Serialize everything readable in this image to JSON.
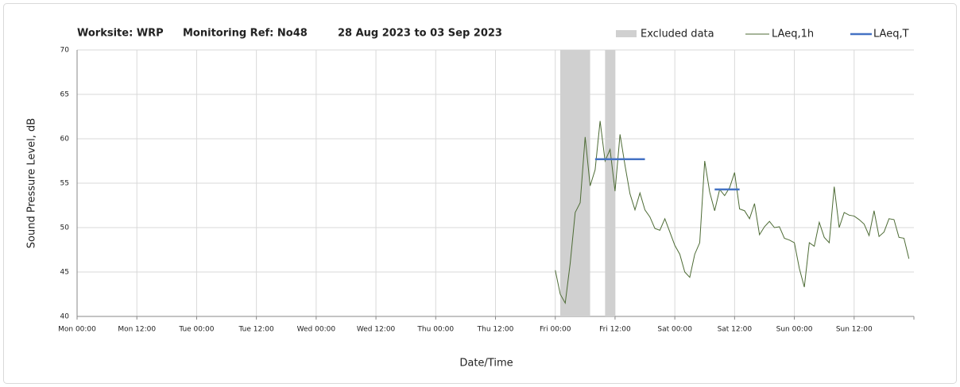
{
  "chart_data": {
    "type": "line",
    "title": [
      "Worksite: WRP",
      "Monitoring Ref: No48",
      "28 Aug 2023 to 03 Sep 2023"
    ],
    "xlabel": "Date/Time",
    "ylabel": "Sound Pressure Level, dB",
    "xlim": [
      0,
      168
    ],
    "xticks": [
      {
        "value": 0,
        "label": "Mon 00:00"
      },
      {
        "value": 12,
        "label": "Mon 12:00"
      },
      {
        "value": 24,
        "label": "Tue 00:00"
      },
      {
        "value": 36,
        "label": "Tue 12:00"
      },
      {
        "value": 48,
        "label": "Wed 00:00"
      },
      {
        "value": 60,
        "label": "Wed 12:00"
      },
      {
        "value": 72,
        "label": "Thu 00:00"
      },
      {
        "value": 84,
        "label": "Thu 12:00"
      },
      {
        "value": 96,
        "label": "Fri 00:00"
      },
      {
        "value": 108,
        "label": "Fri 12:00"
      },
      {
        "value": 120,
        "label": "Sat 00:00"
      },
      {
        "value": 132,
        "label": "Sat 12:00"
      },
      {
        "value": 144,
        "label": "Sun 00:00"
      },
      {
        "value": 156,
        "label": "Sun 12:00"
      }
    ],
    "ylim": [
      40,
      70
    ],
    "yticks": [
      40,
      45,
      50,
      55,
      60,
      65,
      70
    ],
    "grid": true,
    "x": [
      96,
      97,
      98,
      99,
      100,
      101,
      102,
      103,
      104,
      105,
      106,
      107,
      108,
      109,
      110,
      111,
      112,
      113,
      114,
      115,
      116,
      117,
      118,
      119,
      120,
      121,
      122,
      123,
      124,
      125,
      126,
      127,
      128,
      129,
      130,
      131,
      132,
      133,
      134,
      135,
      136,
      137,
      138,
      139,
      140,
      141,
      142,
      143,
      144,
      145,
      146,
      147,
      148,
      149,
      150,
      151,
      152,
      153,
      154,
      155,
      156,
      157,
      158,
      159,
      160,
      161,
      162,
      163,
      164,
      165,
      166,
      167
    ],
    "series": [
      {
        "name": "LAeq,1h",
        "color": "#4d6b35",
        "values": [
          45.2,
          42.5,
          41.5,
          46,
          51.7,
          52.8,
          60.2,
          54.7,
          56.5,
          62,
          57.5,
          58.8,
          54.1,
          60.5,
          57,
          53.8,
          52,
          53.9,
          52,
          51.2,
          49.9,
          49.7,
          51,
          49.5,
          48,
          47,
          45,
          44.4,
          47,
          48.3,
          57.5,
          54,
          51.9,
          54.3,
          53.6,
          54.5,
          56.2,
          52.1,
          51.9,
          51,
          52.7,
          49.2,
          50.1,
          50.7,
          50,
          50.1,
          48.8,
          48.6,
          48.3,
          45.4,
          43.3,
          48.3,
          47.9,
          50.6,
          48.9,
          48.3,
          54.6,
          50,
          51.7,
          51.4,
          51.3,
          50.9,
          50.4,
          49.1,
          51.9,
          49,
          49.5,
          51,
          50.9,
          48.9,
          48.8,
          46.5
        ]
      }
    ],
    "excluded": {
      "name": "Excluded data",
      "color": "#d0d0d0",
      "ranges": [
        [
          97,
          103
        ],
        [
          106,
          108
        ]
      ]
    },
    "period": {
      "name": "LAeq,T",
      "color": "#4472c4",
      "ranges": [
        [
          104,
          114
        ],
        [
          128,
          133
        ]
      ],
      "values": [
        57.7,
        54.3
      ]
    }
  }
}
